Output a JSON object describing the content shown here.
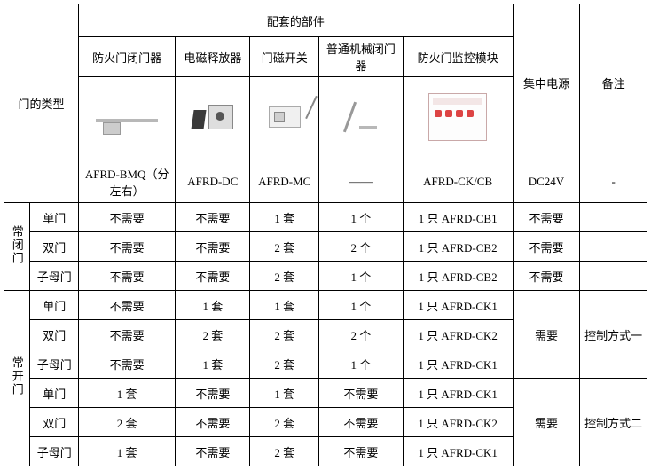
{
  "header": {
    "doorTypeLabel": "门的类型",
    "componentsTitle": "配套的部件",
    "cols": {
      "closer": "防火门闭门器",
      "release": "电磁释放器",
      "switch": "门磁开关",
      "mech": "普通机械闭门器",
      "module": "防火门监控模块",
      "power": "集中电源",
      "remark": "备注"
    },
    "models": {
      "closer": "AFRD-BMQ（分左右）",
      "release": "AFRD-DC",
      "switch": "AFRD-MC",
      "mech": "——",
      "module": "AFRD-CK/CB",
      "power": "DC24V",
      "remark": "-"
    }
  },
  "groups": {
    "nc": "常闭门",
    "no": "常开门"
  },
  "subtypes": {
    "single": "单门",
    "double": "双门",
    "sub": "子母门"
  },
  "vals": {
    "noneed": "不需要",
    "need": "需要",
    "set1": "1 套",
    "set2": "2 套",
    "pc1": "1 个",
    "pc2": "2 个",
    "cb1": "1 只 AFRD-CB1",
    "cb2": "1 只 AFRD-CB2",
    "ck1": "1 只 AFRD-CK1",
    "ck2": "1 只 AFRD-CK2",
    "ctrl1": "控制方式一",
    "ctrl2": "控制方式二"
  }
}
